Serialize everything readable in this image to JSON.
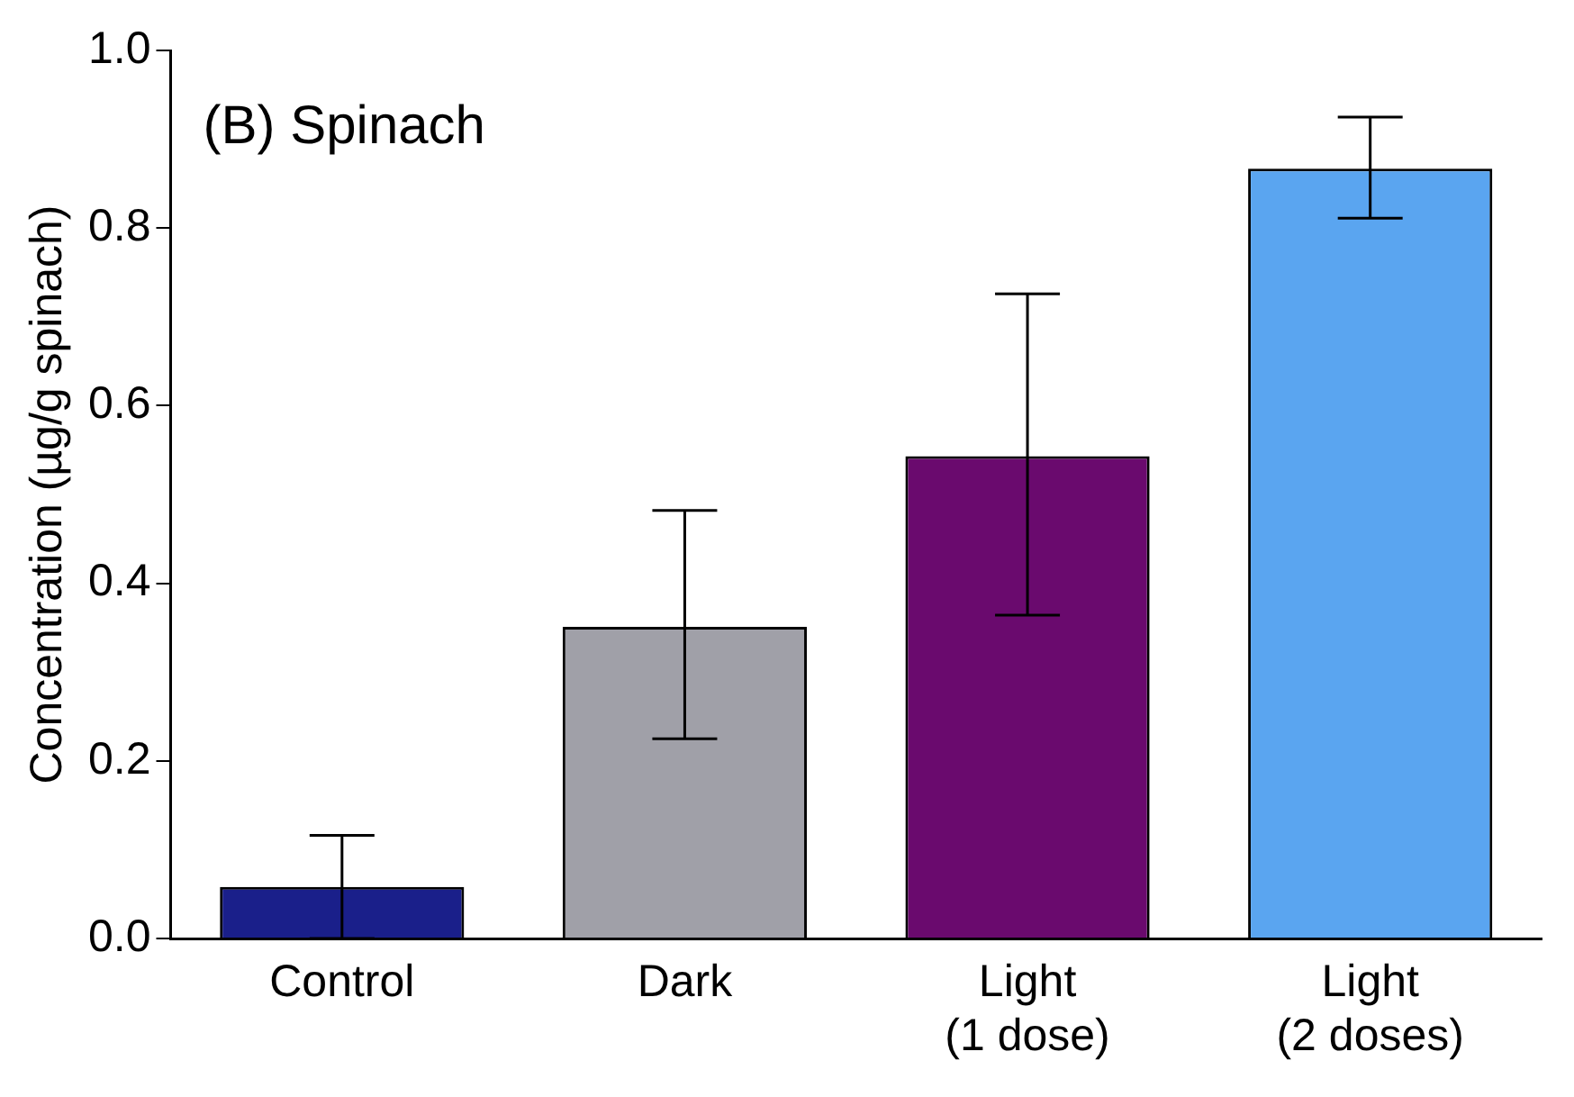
{
  "chart_data": {
    "type": "bar",
    "title": "(B) Spinach",
    "ylabel": "Concentration (µg/g spinach)",
    "categories": [
      "Control",
      "Dark",
      "Light (1 dose)",
      "Light (2 doses)"
    ],
    "values": [
      0.058,
      0.351,
      0.543,
      0.867
    ],
    "colors": [
      "#1a1f8a",
      "#a0a0a8",
      "#6a0a6e",
      "#5aa5f0"
    ],
    "errors": [
      [
        0.0,
        0.116
      ],
      [
        0.225,
        0.482
      ],
      [
        0.364,
        0.726
      ],
      [
        0.811,
        0.925
      ]
    ],
    "ylim": [
      0,
      1
    ],
    "yticks": [
      {
        "value": 0,
        "label": "0.0"
      },
      0.2,
      0.4,
      0.6,
      0.8,
      {
        "value": 1,
        "label": "1.0"
      }
    ],
    "grid": false,
    "legend": false
  }
}
